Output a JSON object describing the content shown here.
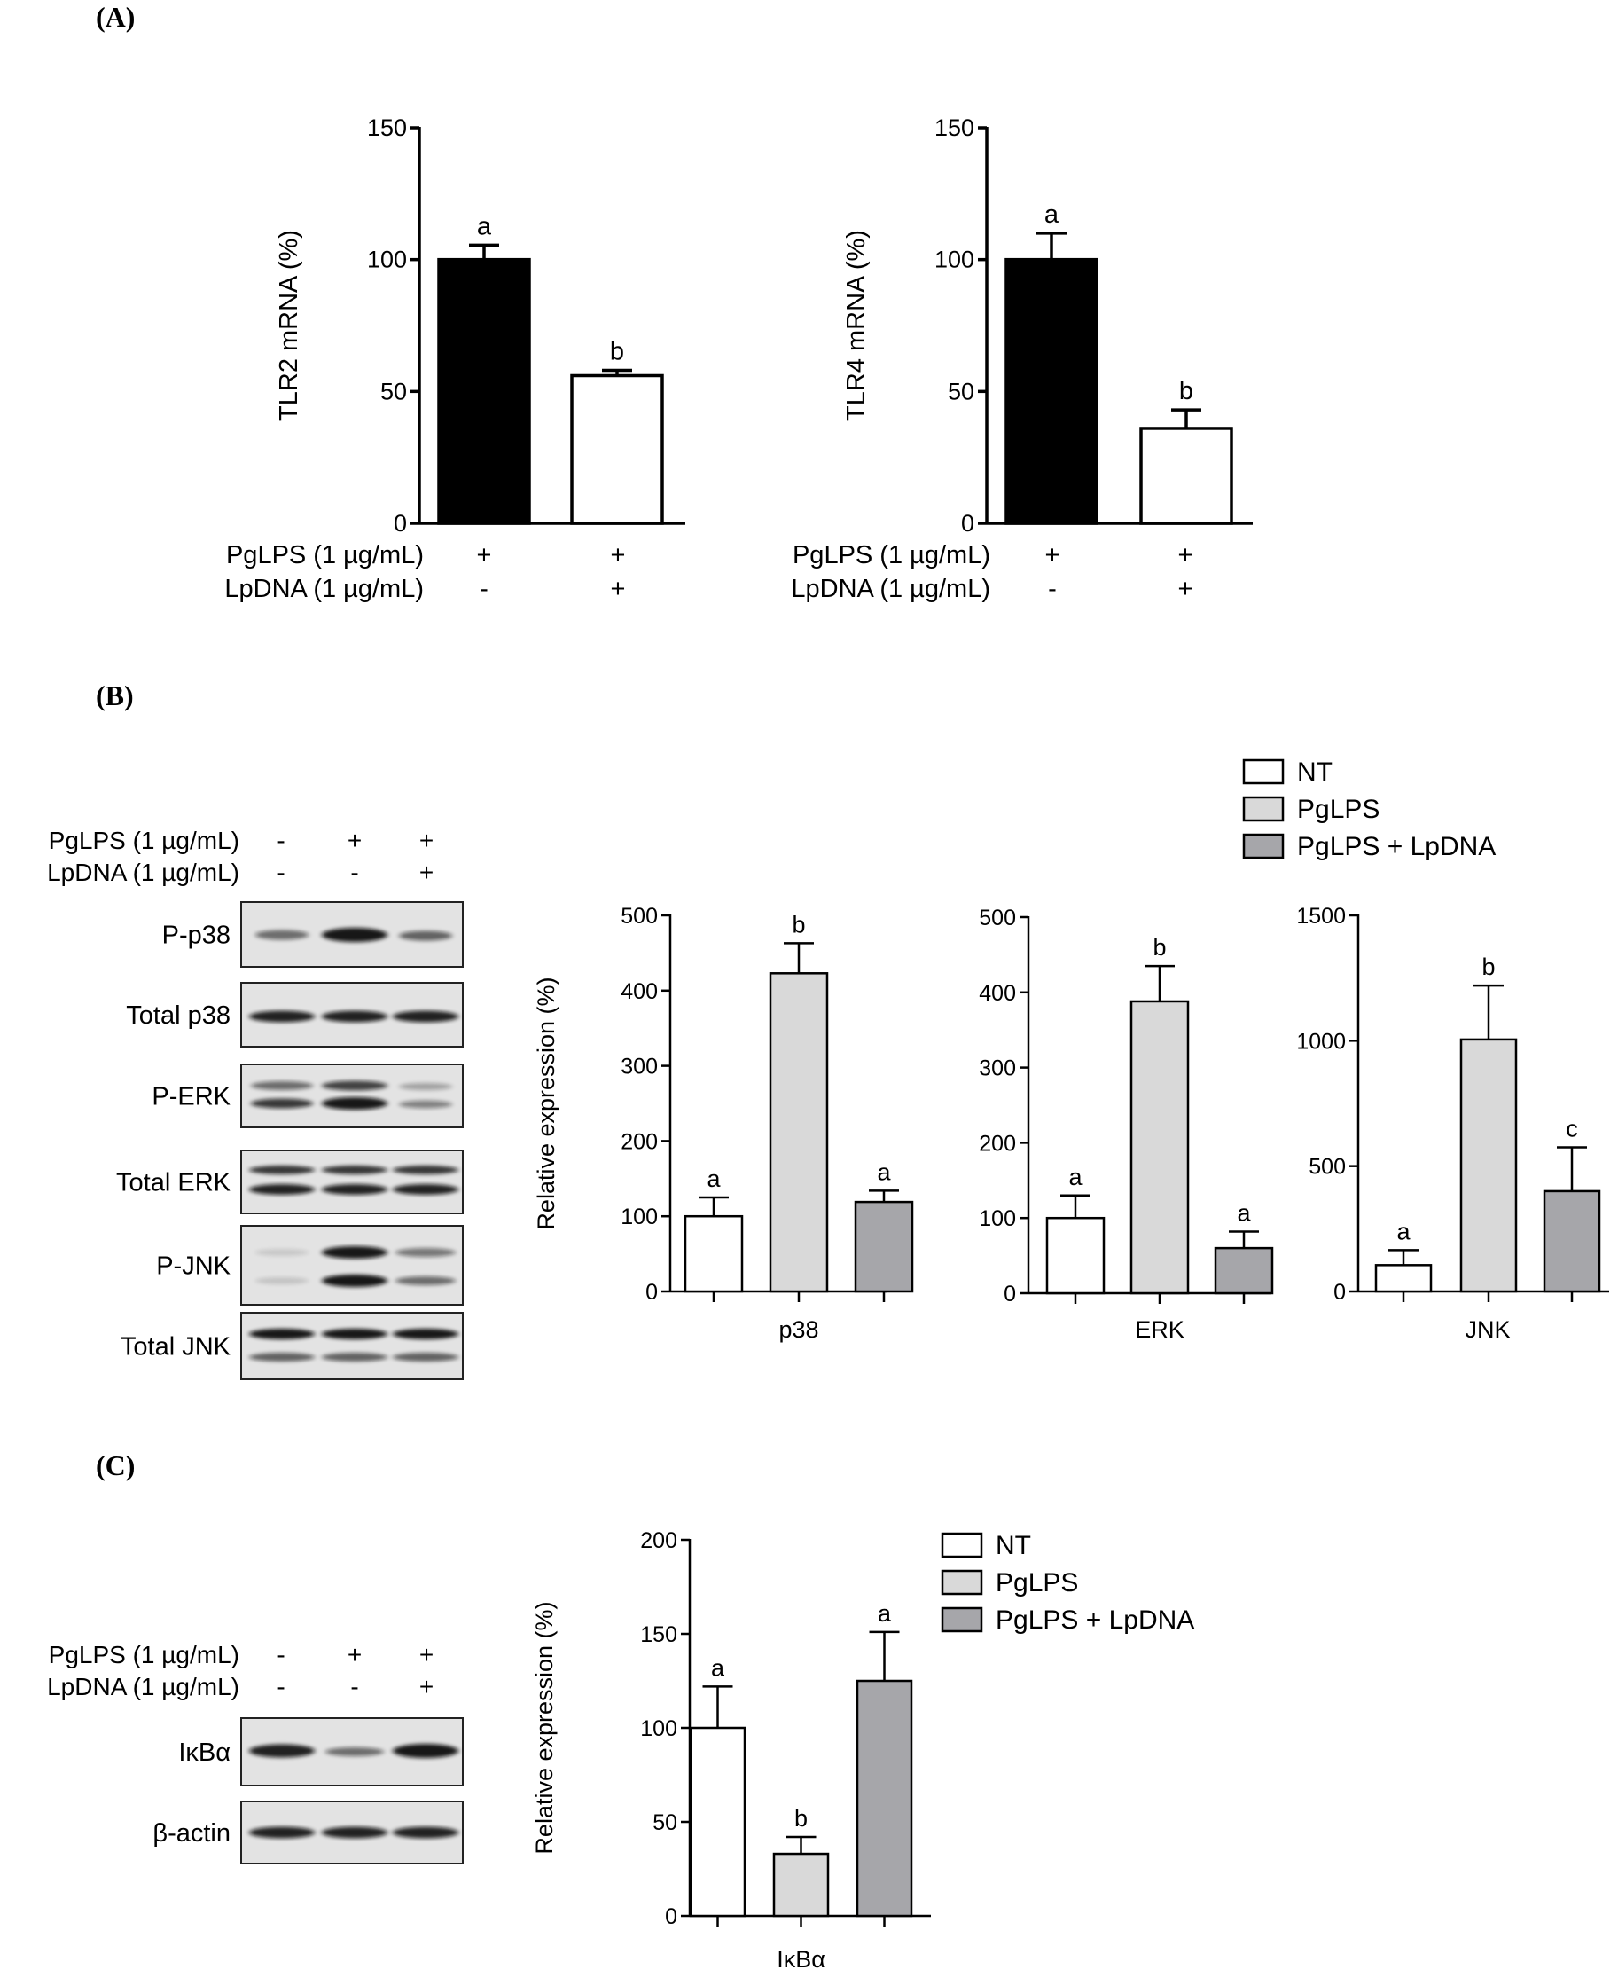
{
  "panel_labels": {
    "a": "(A)",
    "b": "(B)",
    "c": "(C)"
  },
  "colors": {
    "black": "#000000",
    "white": "#ffffff",
    "light_gray": "#d9d9d9",
    "dark_gray": "#a6a6aa"
  },
  "treatment_labels": {
    "pglps": "PgLPS (1 µg/mL)",
    "lpdna": "LpDNA (1 µg/mL)"
  },
  "panelA_treatments": {
    "pglps": [
      "+",
      "+"
    ],
    "lpdna": [
      "-",
      "+"
    ]
  },
  "panelBC_treatments": {
    "pglps": [
      "-",
      "+",
      "+"
    ],
    "lpdna": [
      "-",
      "-",
      "+"
    ]
  },
  "legend": [
    "NT",
    "PgLPS",
    "PgLPS + LpDNA"
  ],
  "blot_b_labels": [
    "P-p38",
    "Total p38",
    "P-ERK",
    "Total ERK",
    "P-JNK",
    "Total JNK"
  ],
  "blot_c_labels": [
    "IκBα",
    "β-actin"
  ],
  "chart_data": [
    {
      "type": "bar",
      "ylabel": "TLR2 mRNA (%)",
      "ylim": [
        0,
        150
      ],
      "yticks": [
        0,
        50,
        100,
        150
      ],
      "values": [
        100,
        56
      ],
      "errors": [
        5.5,
        2
      ],
      "letters": [
        "a",
        "b"
      ],
      "colors": [
        "#000000",
        "#ffffff"
      ]
    },
    {
      "type": "bar",
      "ylabel": "TLR4 mRNA (%)",
      "ylim": [
        0,
        150
      ],
      "yticks": [
        0,
        50,
        100,
        150
      ],
      "values": [
        100,
        36
      ],
      "errors": [
        10,
        7
      ],
      "letters": [
        "a",
        "b"
      ],
      "colors": [
        "#000000",
        "#ffffff"
      ]
    },
    {
      "type": "bar",
      "ylabel": "Relative expression (%)",
      "xlabel": "p38",
      "ylim": [
        0,
        500
      ],
      "yticks": [
        0,
        100,
        200,
        300,
        400,
        500
      ],
      "series": [
        "NT",
        "PgLPS",
        "PgLPS + LpDNA"
      ],
      "values": [
        100,
        423,
        119
      ],
      "errors": [
        25,
        40,
        15
      ],
      "letters": [
        "a",
        "b",
        "a"
      ]
    },
    {
      "type": "bar",
      "xlabel": "ERK",
      "ylim": [
        0,
        500
      ],
      "yticks": [
        0,
        100,
        200,
        300,
        400,
        500
      ],
      "series": [
        "NT",
        "PgLPS",
        "PgLPS + LpDNA"
      ],
      "values": [
        100,
        388,
        60
      ],
      "errors": [
        30,
        47,
        22
      ],
      "letters": [
        "a",
        "b",
        "a"
      ]
    },
    {
      "type": "bar",
      "xlabel": "JNK",
      "ylim": [
        0,
        1500
      ],
      "yticks": [
        0,
        500,
        1000,
        1500
      ],
      "series": [
        "NT",
        "PgLPS",
        "PgLPS + LpDNA"
      ],
      "values": [
        105,
        1005,
        400
      ],
      "errors": [
        60,
        215,
        175
      ],
      "letters": [
        "a",
        "b",
        "c"
      ]
    },
    {
      "type": "bar",
      "ylabel": "Relative expression (%)",
      "xlabel": "IκBα",
      "ylim": [
        0,
        200
      ],
      "yticks": [
        0,
        50,
        100,
        150,
        200
      ],
      "series": [
        "NT",
        "PgLPS",
        "PgLPS + LpDNA"
      ],
      "values": [
        100,
        33,
        125
      ],
      "errors": [
        22,
        9,
        26
      ],
      "letters": [
        "a",
        "b",
        "a"
      ]
    }
  ]
}
